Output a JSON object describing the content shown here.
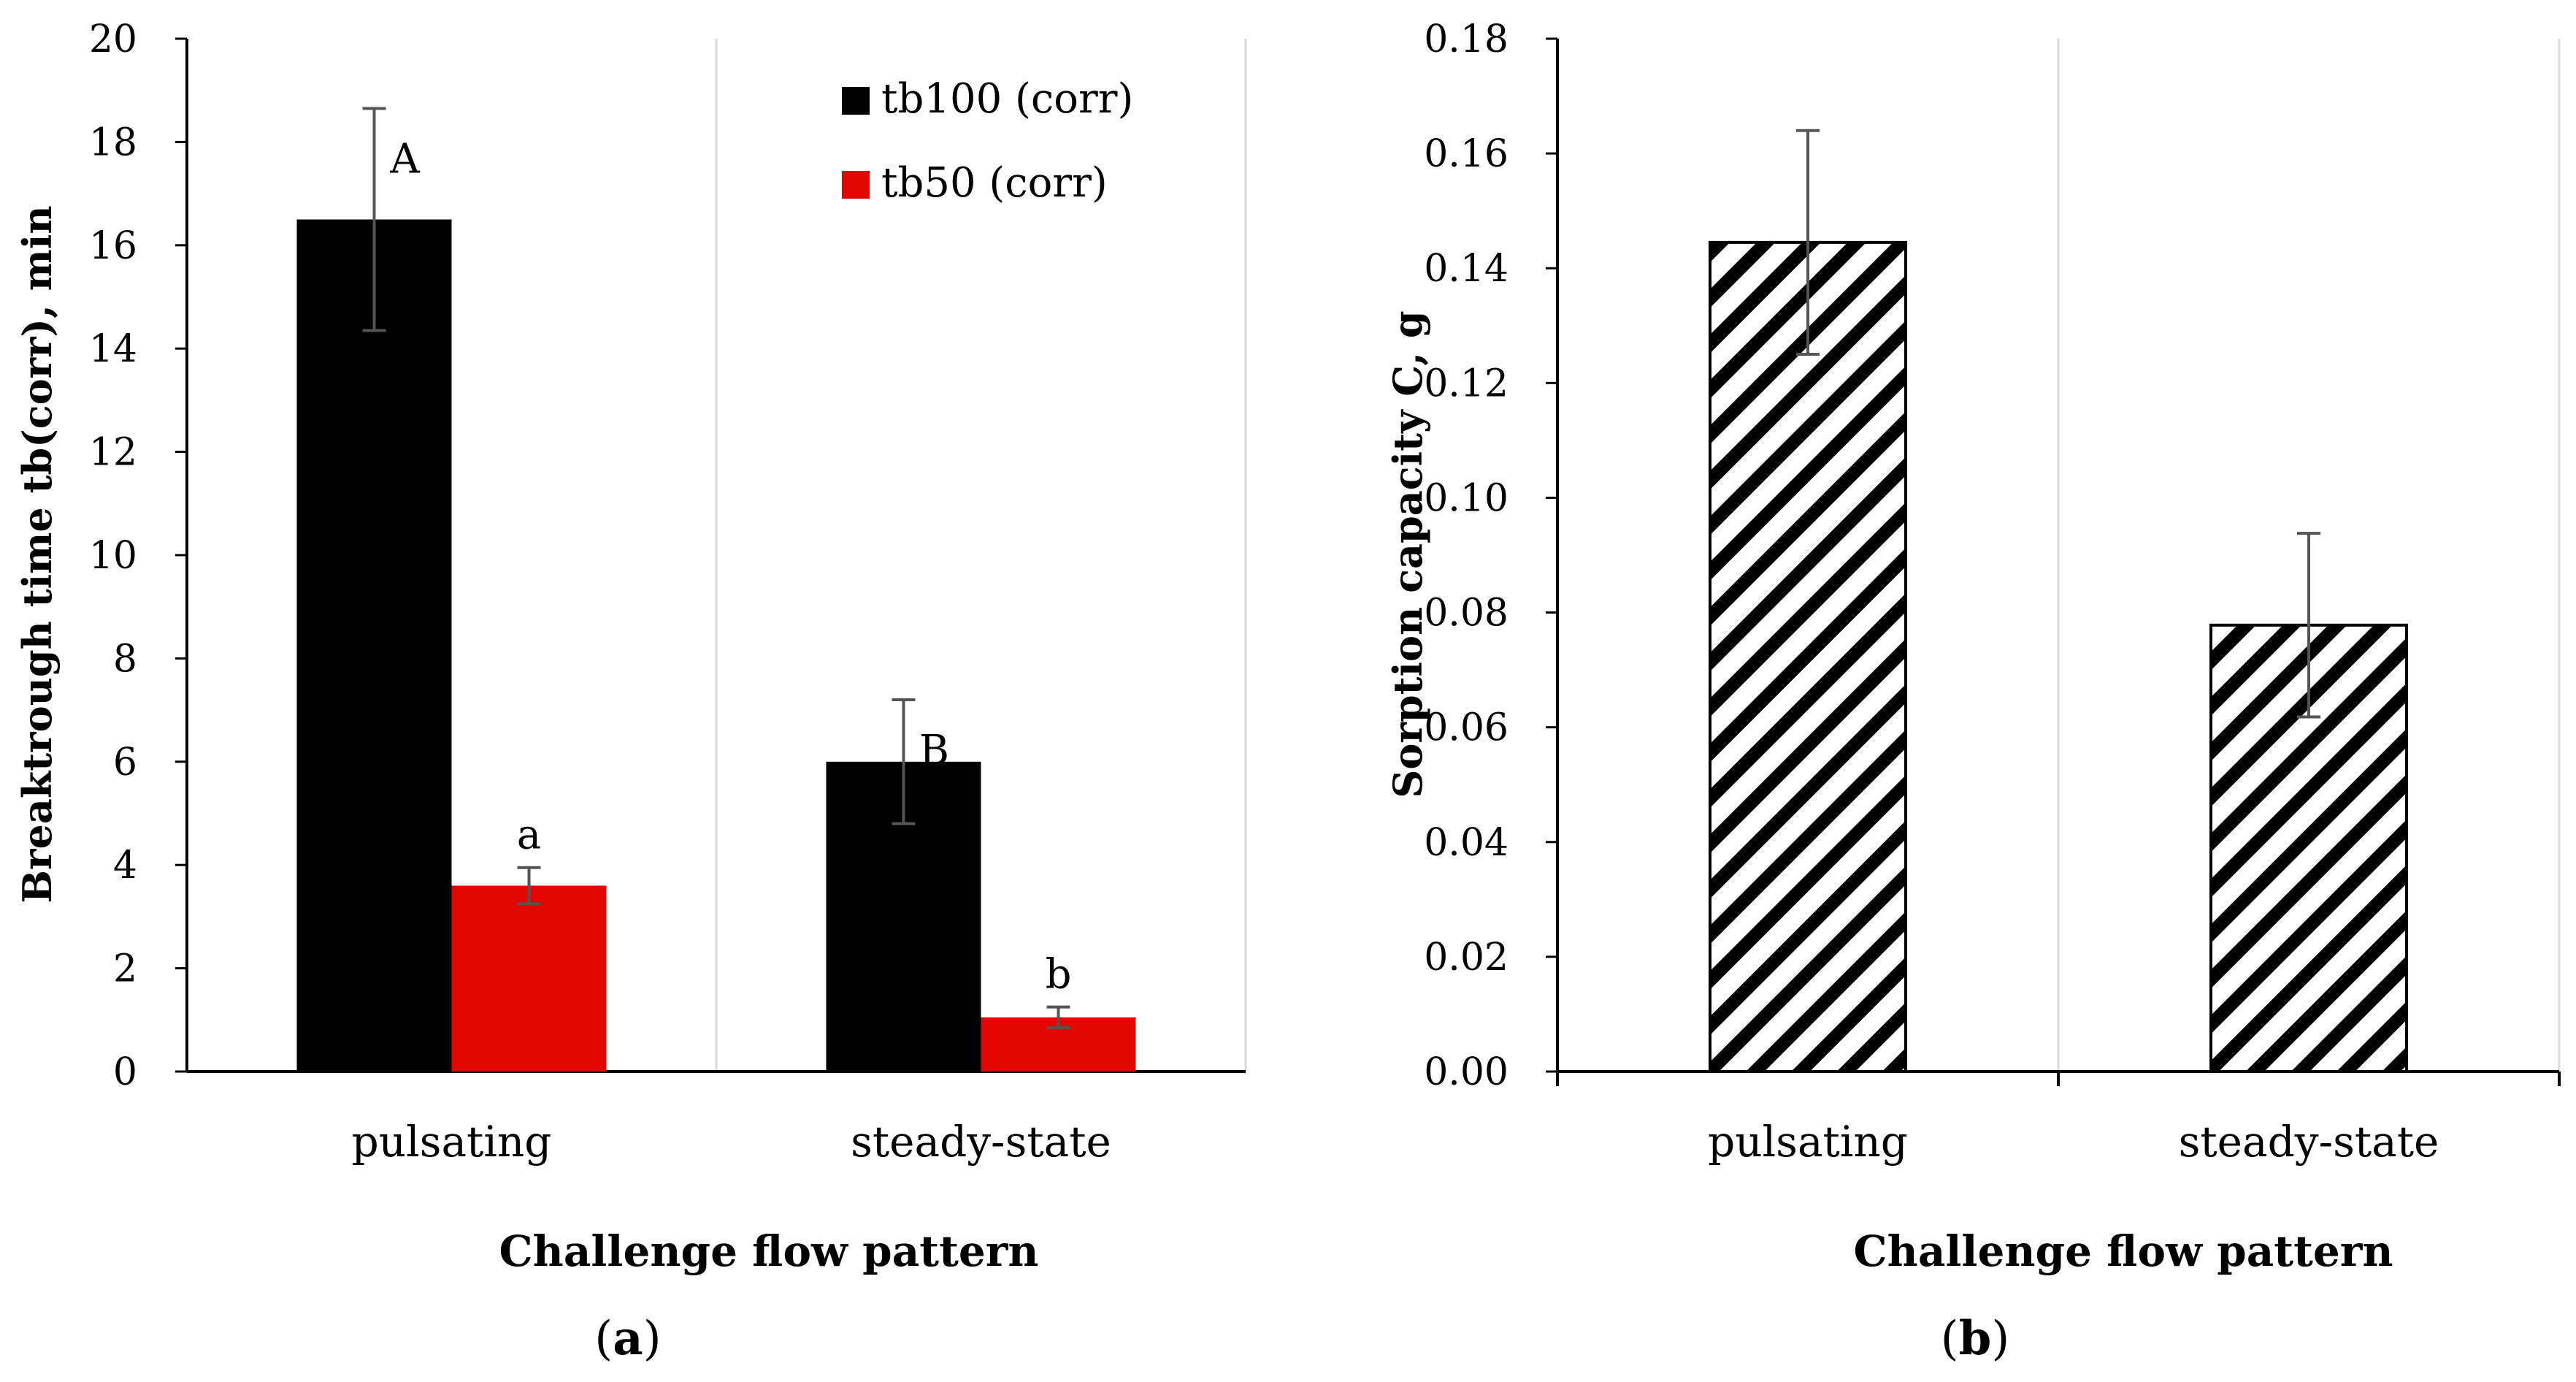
{
  "chart_data": [
    {
      "type": "bar",
      "panel_label": "a",
      "categories": [
        "pulsating",
        "steady-state"
      ],
      "series": [
        {
          "name": "tb100 (corr)",
          "color": "#000000",
          "values": [
            16.5,
            6.0
          ],
          "error": [
            2.15,
            1.2
          ],
          "letters": [
            "A",
            "B"
          ]
        },
        {
          "name": "tb50 (corr)",
          "color": "#e10600",
          "values": [
            3.6,
            1.05
          ],
          "error": [
            0.35,
            0.2
          ],
          "letters": [
            "a",
            "b"
          ]
        }
      ],
      "xlabel": "Challenge flow pattern",
      "ylabel": "Breaktrough time tb(corr), min",
      "ylim": [
        0,
        20
      ],
      "yticks": [
        "0",
        "2",
        "4",
        "6",
        "8",
        "10",
        "12",
        "14",
        "16",
        "18",
        "20"
      ],
      "legend_position": "top-right",
      "grid": "vertical"
    },
    {
      "type": "bar",
      "panel_label": "b",
      "categories": [
        "pulsating",
        "steady-state"
      ],
      "series": [
        {
          "name": "Sorption capacity",
          "pattern": "diagonal-hatch",
          "values": [
            0.1445,
            0.0778
          ],
          "error": [
            0.0195,
            0.016
          ]
        }
      ],
      "xlabel": "Challenge flow pattern",
      "ylabel": "Sorption capacity C, g",
      "ylim": [
        0,
        0.18
      ],
      "yticks": [
        "0.00",
        "0.02",
        "0.04",
        "0.06",
        "0.08",
        "0.10",
        "0.12",
        "0.14",
        "0.16",
        "0.18"
      ],
      "grid": "vertical"
    }
  ]
}
